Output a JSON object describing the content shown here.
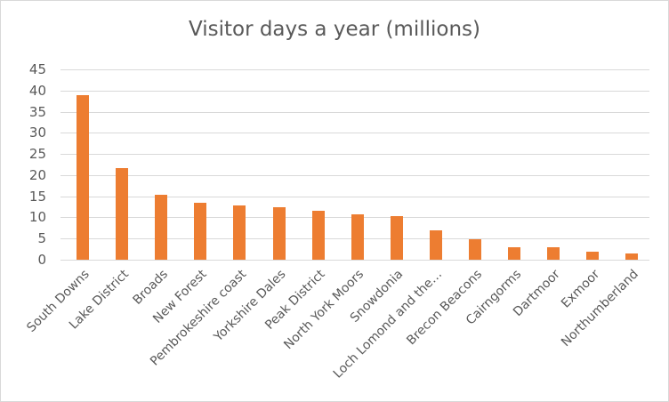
{
  "chart_data": {
    "type": "bar",
    "title": "Visitor days a year (millions)",
    "xlabel": "",
    "ylabel": "",
    "ylim": [
      0,
      45
    ],
    "yticks": [
      0,
      5,
      10,
      15,
      20,
      25,
      30,
      35,
      40,
      45
    ],
    "grid": true,
    "legend": null,
    "color": "#ed7d31",
    "categories": [
      "South Downs",
      "Lake District",
      "Broads",
      "New Forest",
      "Pembrokeshire coast",
      "Yorkshire Dales",
      "Peak District",
      "North York Moors",
      "Snowdonia",
      "Loch Lomond and the…",
      "Brecon Beacons",
      "Cairngorms",
      "Dartmoor",
      "Exmoor",
      "Northumberland"
    ],
    "values": [
      39,
      21.6,
      15.3,
      13.4,
      12.8,
      12.4,
      11.6,
      10.7,
      10.3,
      6.9,
      4.9,
      3.0,
      3.0,
      1.9,
      1.5
    ]
  }
}
